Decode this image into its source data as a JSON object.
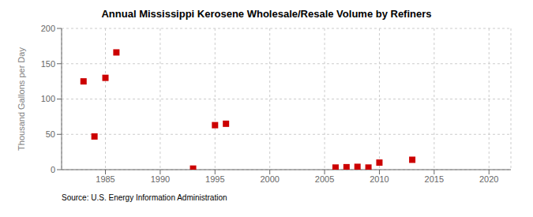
{
  "chart_data": {
    "type": "scatter",
    "title": "Annual Mississippi Kerosene Wholesale/Resale Volume by Refiners",
    "ylabel": "Thousand Gallons per Day",
    "annotation": "Source: U.S. Energy Information Administration",
    "x": [
      1983,
      1984,
      1985,
      1986,
      1993,
      1995,
      1996,
      2006,
      2007,
      2008,
      2009,
      2010,
      2013
    ],
    "values": [
      125,
      47,
      130,
      166,
      1.5,
      63,
      65,
      3,
      3.5,
      4,
      3,
      10,
      14
    ],
    "color": "#cc0000",
    "marker": "square",
    "xlim": [
      1981,
      2022
    ],
    "xticks": [
      1985,
      1990,
      1995,
      2000,
      2005,
      2010,
      2015,
      2020
    ],
    "ylim": [
      0,
      200
    ],
    "yticks": [
      0,
      50,
      100,
      150,
      200
    ],
    "grid": true
  }
}
